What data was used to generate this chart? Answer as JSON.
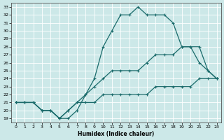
{
  "xlabel": "Humidex (Indice chaleur)",
  "bg_color": "#cce8e8",
  "line_color": "#1a6b6b",
  "grid_color": "#ffffff",
  "xlim": [
    -0.5,
    23.5
  ],
  "ylim": [
    18.5,
    33.5
  ],
  "xticks": [
    0,
    1,
    2,
    3,
    4,
    5,
    6,
    7,
    8,
    9,
    10,
    11,
    12,
    13,
    14,
    15,
    16,
    17,
    18,
    19,
    20,
    21,
    22,
    23
  ],
  "yticks": [
    19,
    20,
    21,
    22,
    23,
    24,
    25,
    26,
    27,
    28,
    29,
    30,
    31,
    32,
    33
  ],
  "curve1_x": [
    0,
    1,
    2,
    3,
    4,
    5,
    6,
    7,
    8,
    9,
    10,
    11,
    12,
    13,
    14,
    15,
    16,
    17,
    18,
    19,
    20,
    21,
    22,
    23
  ],
  "curve1_y": [
    21,
    21,
    21,
    20,
    20,
    19,
    19,
    20,
    22,
    24,
    28,
    30,
    32,
    32,
    33,
    32,
    32,
    32,
    31,
    28,
    28,
    26,
    25,
    24
  ],
  "curve2_x": [
    0,
    1,
    2,
    3,
    4,
    5,
    6,
    7,
    8,
    9,
    10,
    11,
    12,
    13,
    14,
    15,
    16,
    17,
    18,
    19,
    20,
    21,
    22,
    23
  ],
  "curve2_y": [
    21,
    21,
    21,
    20,
    20,
    19,
    20,
    21,
    22,
    23,
    24,
    25,
    25,
    25,
    25,
    26,
    27,
    27,
    27,
    28,
    28,
    28,
    25,
    24
  ],
  "curve3_x": [
    0,
    1,
    2,
    3,
    4,
    5,
    6,
    7,
    8,
    9,
    10,
    11,
    12,
    13,
    14,
    15,
    16,
    17,
    18,
    19,
    20,
    21,
    22,
    23
  ],
  "curve3_y": [
    21,
    21,
    21,
    20,
    20,
    19,
    20,
    21,
    21,
    21,
    22,
    22,
    22,
    22,
    22,
    22,
    23,
    23,
    23,
    23,
    23,
    24,
    24,
    24
  ]
}
